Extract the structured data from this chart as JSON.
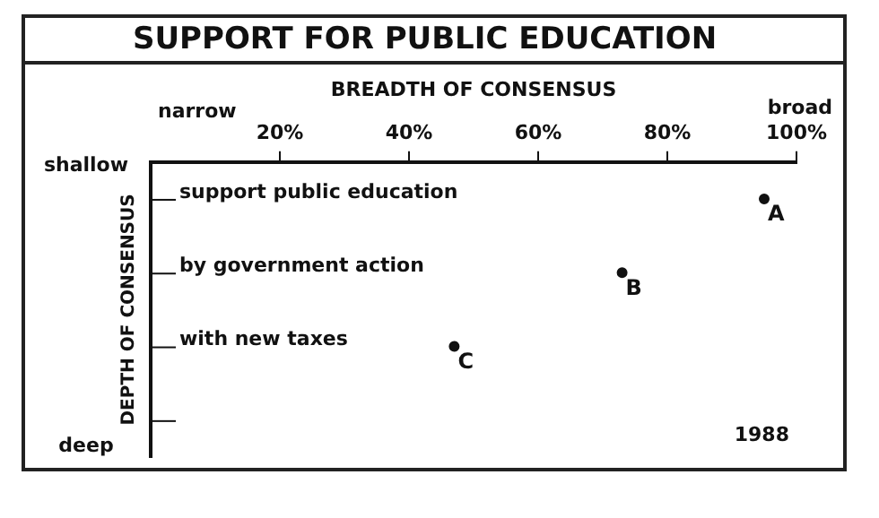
{
  "chart_data": {
    "type": "scatter",
    "orientation": "horizontal",
    "title": "SUPPORT FOR PUBLIC EDUCATION",
    "xlabel": "BREADTH OF CONSENSUS",
    "ylabel": "DEPTH OF CONSENSUS",
    "categories": [
      "support public education",
      "by government action",
      "with new taxes",
      null
    ],
    "values": [
      95,
      73,
      47,
      null
    ],
    "value_labels": [
      "A",
      "B",
      "C",
      null
    ],
    "color": "#111111",
    "marker": "circle",
    "grid": false,
    "legend": false,
    "xlim": [
      0,
      100
    ],
    "xticks": [
      {
        "value": 20,
        "label": "20%"
      },
      {
        "value": 40,
        "label": "40%"
      },
      {
        "value": 60,
        "label": "60%"
      },
      {
        "value": 80,
        "label": "80%"
      },
      {
        "value": 100,
        "label": "100%"
      }
    ],
    "annotations": [
      "narrow",
      "broad",
      "shallow",
      "deep",
      "1988"
    ]
  }
}
